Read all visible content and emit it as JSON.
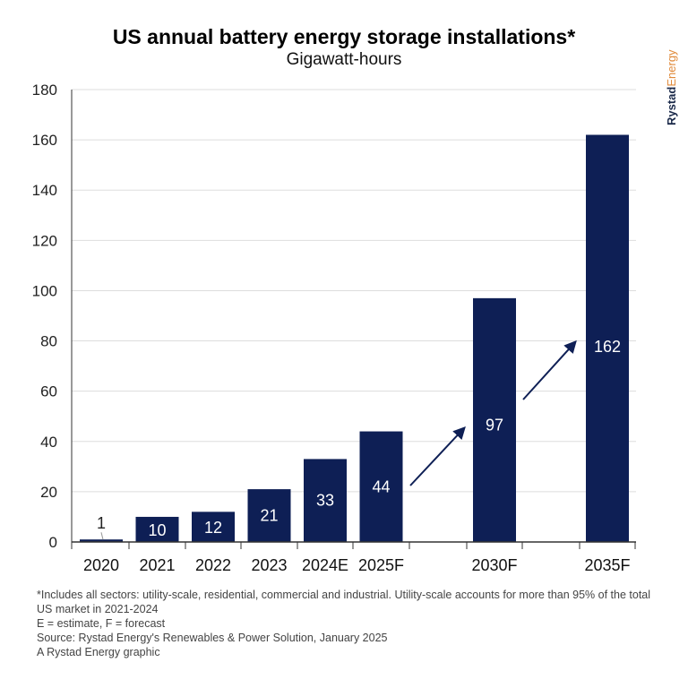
{
  "title": "US annual battery energy storage installations*",
  "subtitle": "Gigawatt-hours",
  "brand": {
    "part1": "Rystad",
    "part2": "Energy"
  },
  "notes": [
    "*Includes all sectors: utility-scale, residential, commercial and industrial. Utility-scale accounts for more than 95% of the total US market in 2021-2024",
    "E = estimate, F = forecast",
    "Source: Rystad Energy's Renewables & Power Solution, January 2025",
    "A Rystad Energy graphic"
  ],
  "colors": {
    "bar": "#0e1f55",
    "grid": "#dddddd",
    "axis": "#333333"
  },
  "chart_data": {
    "type": "bar",
    "title": "US annual battery energy storage installations*",
    "subtitle": "Gigawatt-hours",
    "categories": [
      "2020",
      "2021",
      "2022",
      "2023",
      "2024E",
      "2025F",
      "2030F",
      "2035F"
    ],
    "values": [
      1,
      10,
      12,
      21,
      33,
      44,
      97,
      162
    ],
    "value_labels": [
      "1",
      "10",
      "12",
      "21",
      "33",
      "44",
      "97",
      "162"
    ],
    "ylim": [
      0,
      180
    ],
    "yticks": [
      0,
      20,
      40,
      60,
      80,
      100,
      120,
      140,
      160,
      180
    ],
    "grid": true,
    "annotations": [
      "arrow from 2025F to 2030F",
      "arrow from 2030F to 2035F"
    ]
  }
}
